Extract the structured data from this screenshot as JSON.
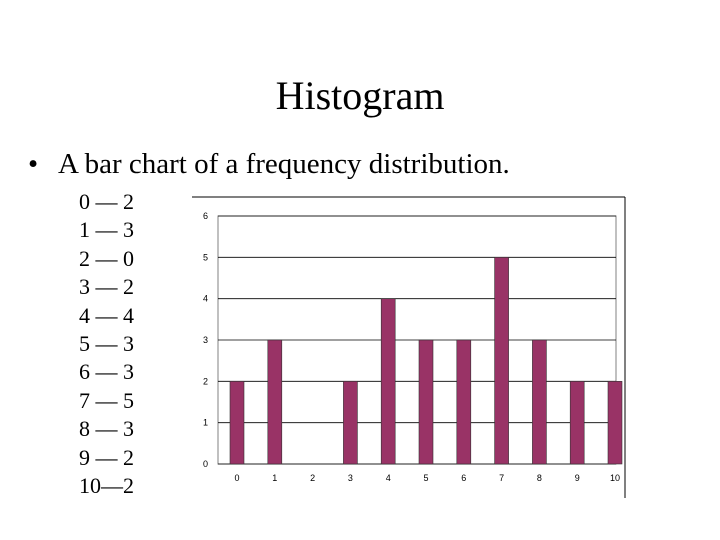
{
  "slide": {
    "title": "Histogram",
    "bullet_marker": "•",
    "bullet_text": "A bar chart of a frequency distribution."
  },
  "frequency_list": [
    {
      "value": "0",
      "count": "2"
    },
    {
      "value": "1",
      "count": "3"
    },
    {
      "value": "2",
      "count": "0"
    },
    {
      "value": "3",
      "count": "2"
    },
    {
      "value": "4",
      "count": "4"
    },
    {
      "value": "5",
      "count": "3"
    },
    {
      "value": "6",
      "count": "3"
    },
    {
      "value": "7",
      "count": "5"
    },
    {
      "value": "8",
      "count": "3"
    },
    {
      "value": "9",
      "count": "2"
    },
    {
      "value": "10",
      "count": "2"
    }
  ],
  "separator": "—",
  "chart_data": {
    "type": "bar",
    "categories": [
      "0",
      "1",
      "2",
      "3",
      "4",
      "5",
      "6",
      "7",
      "8",
      "9",
      "10"
    ],
    "values": [
      2,
      3,
      0,
      2,
      4,
      3,
      3,
      5,
      3,
      2,
      2
    ],
    "title": "",
    "xlabel": "",
    "ylabel": "",
    "ylim": [
      0,
      6
    ],
    "yticks": [
      "0",
      "1",
      "2",
      "3",
      "4",
      "5",
      "6"
    ],
    "grid": "horizontal",
    "legend": "none",
    "bar_color": "#993366"
  }
}
